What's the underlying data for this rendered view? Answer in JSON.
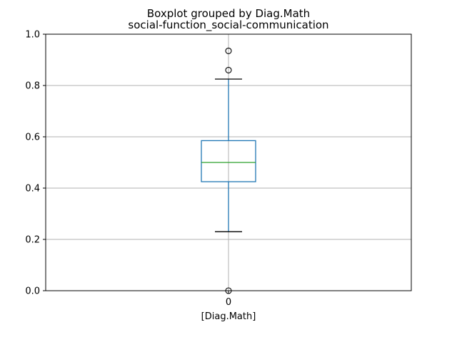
{
  "chart_data": {
    "type": "box",
    "title": "Boxplot grouped by Diag.Math",
    "subtitle": "social-function_social-communication",
    "xlabel": "[Diag.Math]",
    "ylabel": "",
    "categories": [
      "0"
    ],
    "ylim": [
      0.0,
      1.0
    ],
    "yticks": [
      "0.0",
      "0.2",
      "0.4",
      "0.6",
      "0.8",
      "1.0"
    ],
    "grid": true,
    "boxes": [
      {
        "category": "0",
        "whisker_low": 0.23,
        "q1": 0.425,
        "median": 0.5,
        "q3": 0.585,
        "whisker_high": 0.825,
        "outliers": [
          0.935,
          0.86,
          0.0
        ]
      }
    ],
    "colors": {
      "box": "#1f77b4",
      "median": "#2ca02c",
      "whisker_cap": "#000000",
      "grid": "#b0b0b0",
      "axes": "#000000"
    }
  }
}
